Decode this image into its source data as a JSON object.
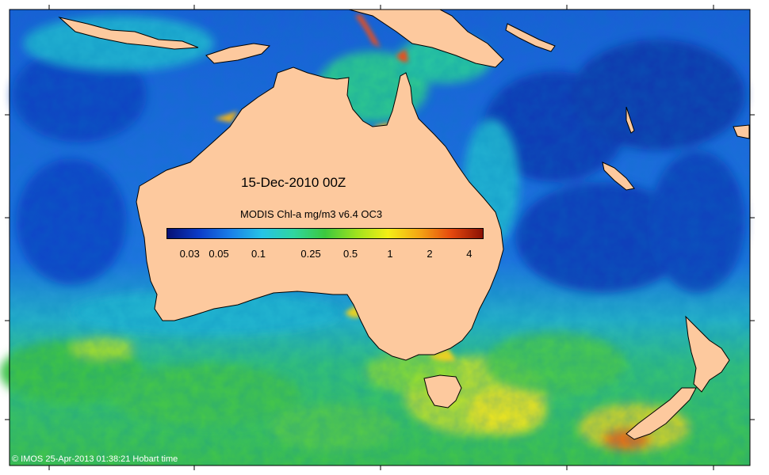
{
  "map": {
    "title": "15-Dec-2010 00Z",
    "colorbar_title": "MODIS Chl-a mg/m3 v6.4 OC3",
    "colorbar_ticks": [
      "0.03",
      "0.05",
      "0.1",
      "0.25",
      "0.5",
      "1",
      "2",
      "4"
    ],
    "colorbar_range": [
      0.02,
      5
    ],
    "credit": "© IMOS 25-Apr-2013 01:38:21 Hobart time",
    "colors": {
      "land": "#fdc99e",
      "deep_ocean": "#0a36b8",
      "open_ocean": "#1e6ce0",
      "coastal_ocean": "#1fb4d9",
      "southern_ocean": "#38c06a",
      "bloom": "#d9e82a",
      "high_chl": "#e85a18",
      "frame": "#000000"
    },
    "colorbar_stops": [
      "#061075",
      "#0b3cc8",
      "#1a7fe8",
      "#25c3e6",
      "#2fd6a0",
      "#3cc83e",
      "#9fe21e",
      "#f4ee16",
      "#f4a514",
      "#e5480e",
      "#8a1104"
    ]
  }
}
